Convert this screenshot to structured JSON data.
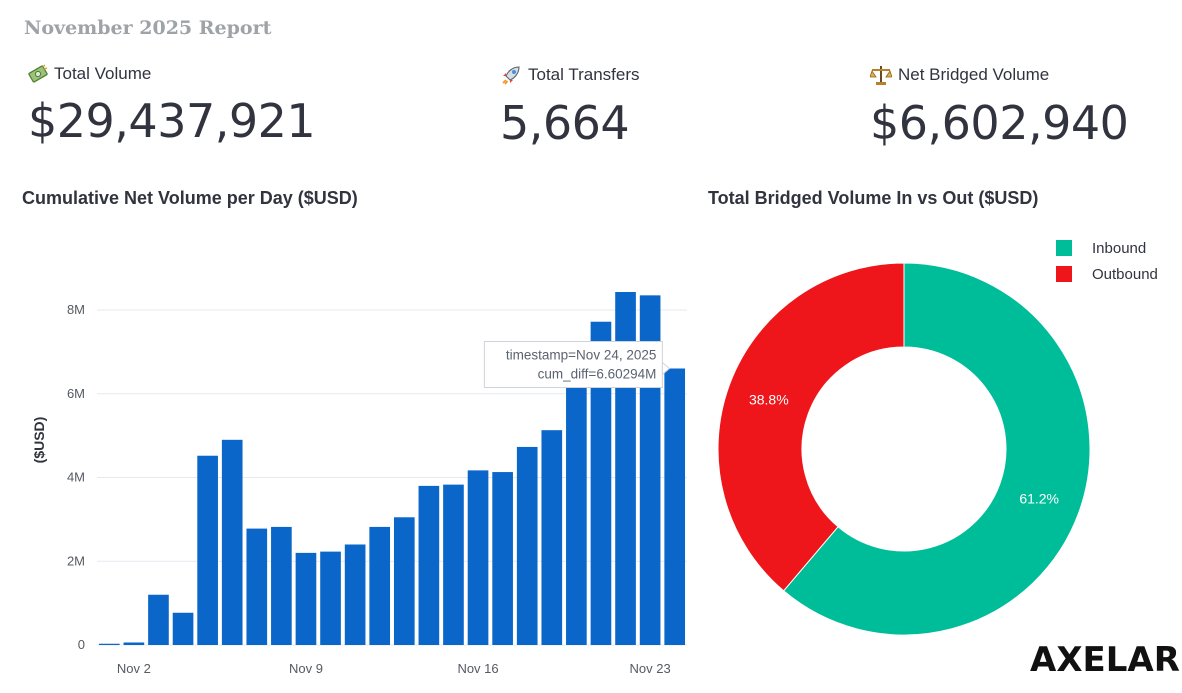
{
  "report_title": "November 2025 Report",
  "metrics": [
    {
      "label": "Total Volume",
      "value": "$29,437,921",
      "icon": "money-icon"
    },
    {
      "label": "Total Transfers",
      "value": "5,664",
      "icon": "rocket-icon"
    },
    {
      "label": "Net Bridged Volume",
      "value": "$6,602,940",
      "icon": "balance-scale-icon"
    }
  ],
  "bar_chart_title": "Cumulative Net Volume per Day  ($USD)",
  "pie_chart_title": "Total Bridged Volume In vs Out ($USD)",
  "logo_text": "AXELAR",
  "colors": {
    "bar": "#0a66c9",
    "inbound": "#00bd99",
    "outbound": "#ee161a"
  },
  "tooltip": {
    "line1": "timestamp=Nov 24, 2025",
    "line2": "cum_diff=6.60294M"
  },
  "chart_data": [
    {
      "type": "bar",
      "title": "Cumulative Net Volume per Day  ($USD)",
      "xlabel": "",
      "ylabel": "($USD)",
      "categories": [
        "Nov 1",
        "Nov 2",
        "Nov 3",
        "Nov 4",
        "Nov 5",
        "Nov 6",
        "Nov 7",
        "Nov 8",
        "Nov 9",
        "Nov 10",
        "Nov 11",
        "Nov 12",
        "Nov 13",
        "Nov 14",
        "Nov 15",
        "Nov 16",
        "Nov 17",
        "Nov 18",
        "Nov 19",
        "Nov 20",
        "Nov 21",
        "Nov 22",
        "Nov 23",
        "Nov 24"
      ],
      "values": [
        0.03,
        0.06,
        1.2,
        0.77,
        4.52,
        4.9,
        2.78,
        2.82,
        2.2,
        2.23,
        2.4,
        2.82,
        3.05,
        3.8,
        3.83,
        4.17,
        4.13,
        4.73,
        5.13,
        6.2,
        7.72,
        8.43,
        8.35,
        6.60294
      ],
      "x_tick_labels": [
        "Nov 2",
        "Nov 9",
        "Nov 16",
        "Nov 23"
      ],
      "x_tick_indices": [
        1,
        8,
        15,
        22
      ],
      "y_ticks": [
        0,
        2,
        4,
        6,
        8
      ],
      "y_tick_labels": [
        "0",
        "2M",
        "4M",
        "6M",
        "8M"
      ],
      "ylim": [
        0,
        9.2
      ],
      "units": "millions USD",
      "grid": true
    },
    {
      "type": "pie",
      "title": "Total Bridged Volume In vs Out ($USD)",
      "labels": [
        "Inbound",
        "Outbound"
      ],
      "values": [
        61.2,
        38.8
      ],
      "value_labels": [
        "61.2%",
        "38.8%"
      ],
      "legend": "top-right",
      "hole": true
    }
  ]
}
